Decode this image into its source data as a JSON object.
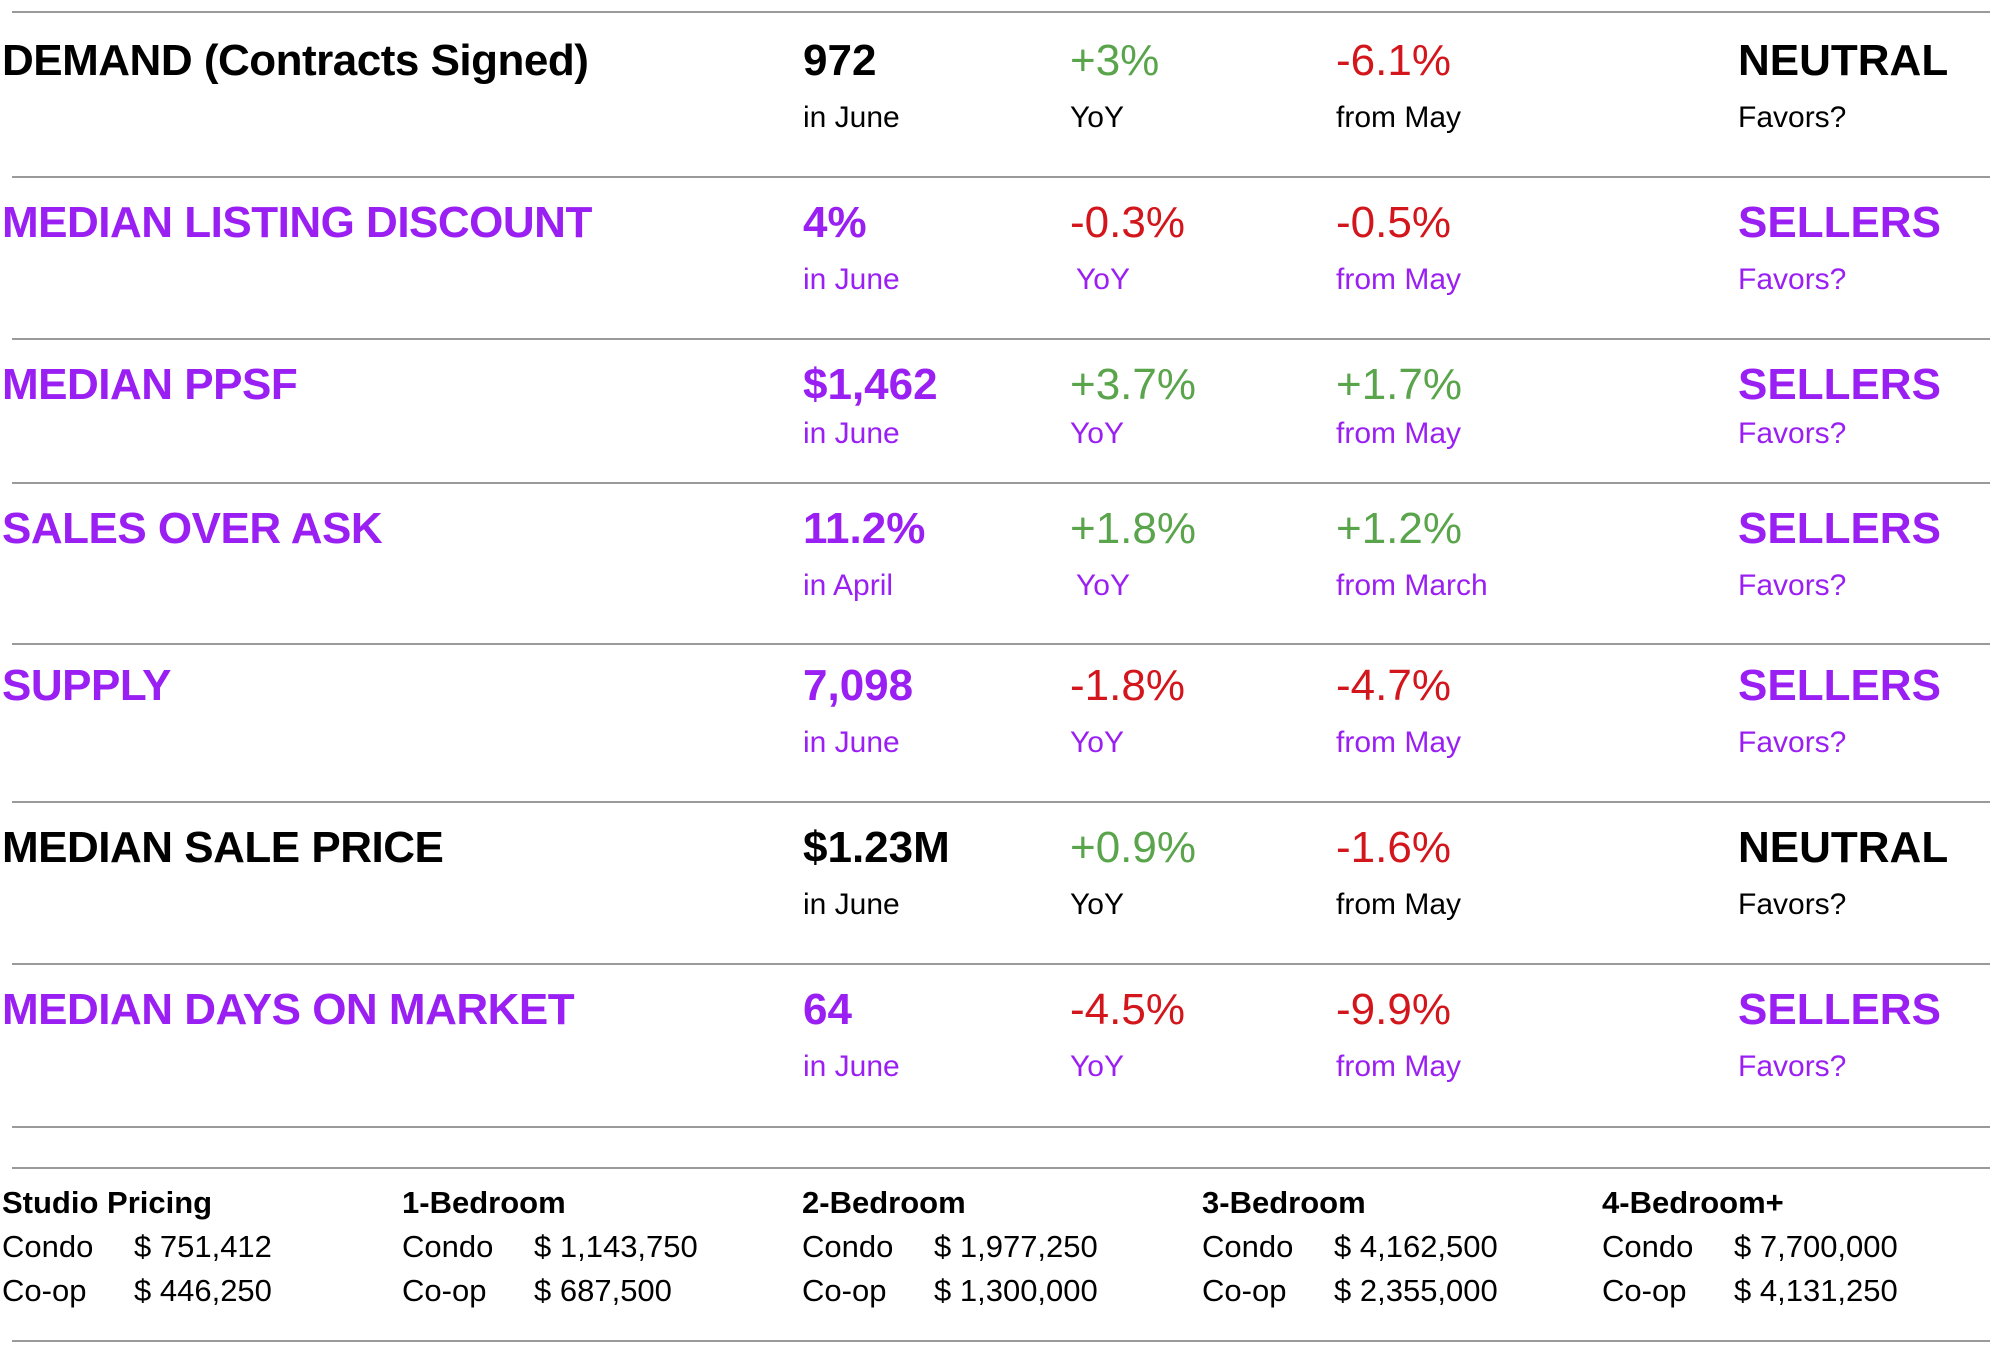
{
  "metrics": [
    {
      "label": "DEMAND (Contracts Signed)",
      "value": "972",
      "period": "in June",
      "yoy": "+3%",
      "yoy_label": "YoY",
      "mom": "-6.1%",
      "mom_label": "from May",
      "favors": "NEUTRAL",
      "favors_label": "Favors?"
    },
    {
      "label": "MEDIAN LISTING DISCOUNT",
      "value": "4%",
      "period": "in June",
      "yoy": "-0.3%",
      "yoy_label": "YoY",
      "mom": "-0.5%",
      "mom_label": "from May",
      "favors": "SELLERS",
      "favors_label": "Favors?"
    },
    {
      "label": "MEDIAN PPSF",
      "value": "$1,462",
      "period": "in June",
      "yoy": "+3.7%",
      "yoy_label": "YoY",
      "mom": "+1.7%",
      "mom_label": "from May",
      "favors": "SELLERS",
      "favors_label": "Favors?"
    },
    {
      "label": "SALES OVER ASK",
      "value": "11.2%",
      "period": "in April",
      "yoy": "+1.8%",
      "yoy_label": "YoY",
      "mom": "+1.2%",
      "mom_label": "from March",
      "favors": "SELLERS",
      "favors_label": "Favors?"
    },
    {
      "label": "SUPPLY",
      "value": "7,098",
      "period": "in June",
      "yoy": "-1.8%",
      "yoy_label": "YoY",
      "mom": "-4.7%",
      "mom_label": "from May",
      "favors": "SELLERS",
      "favors_label": "Favors?"
    },
    {
      "label": "MEDIAN SALE PRICE",
      "value": "$1.23M",
      "period": "in June",
      "yoy": "+0.9%",
      "yoy_label": "YoY",
      "mom": "-1.6%",
      "mom_label": "from May",
      "favors": "NEUTRAL",
      "favors_label": "Favors?"
    },
    {
      "label": "MEDIAN DAYS ON MARKET",
      "value": "64",
      "period": "in June",
      "yoy": "-4.5%",
      "yoy_label": "YoY",
      "mom": "-9.9%",
      "mom_label": "from May",
      "favors": "SELLERS",
      "favors_label": "Favors?"
    }
  ],
  "colors": {
    "purple": "#9a1ff2",
    "green": "#5aa44c",
    "red": "#d3151c",
    "black": "#000000",
    "rule": "#9a9a9a"
  },
  "pricing": [
    {
      "title": "Studio Pricing",
      "condo_label": "Condo",
      "condo": "$ 751,412",
      "coop_label": "Co-op",
      "coop": "$ 446,250"
    },
    {
      "title": "1-Bedroom",
      "condo_label": "Condo",
      "condo": "$ 1,143,750",
      "coop_label": "Co-op",
      "coop": "$ 687,500"
    },
    {
      "title": "2-Bedroom",
      "condo_label": "Condo",
      "condo": "$ 1,977,250",
      "coop_label": "Co-op",
      "coop": "$ 1,300,000"
    },
    {
      "title": "3-Bedroom",
      "condo_label": "Condo",
      "condo": "$ 4,162,500",
      "coop_label": "Co-op",
      "coop": "$ 2,355,000"
    },
    {
      "title": "4-Bedroom+",
      "condo_label": "Condo",
      "condo": "$ 7,700,000",
      "coop_label": "Co-op",
      "coop": "$ 4,131,250"
    }
  ]
}
